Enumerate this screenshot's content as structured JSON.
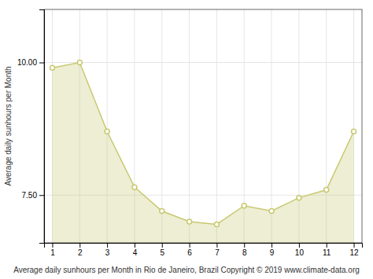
{
  "chart_data": {
    "type": "area",
    "xlabel": "Average daily sunhours per Month in Rio de Janeiro, Brazil Copyright © 2019 www.climate-data.org",
    "ylabel": "Average daily sunhours per Month",
    "x": [
      1,
      2,
      3,
      4,
      5,
      6,
      7,
      8,
      9,
      10,
      11,
      12
    ],
    "values": [
      9.9,
      10.0,
      8.7,
      7.65,
      7.2,
      7.0,
      6.95,
      7.3,
      7.2,
      7.45,
      7.6,
      8.7
    ],
    "color": "#C8C870",
    "marker": "circle",
    "xlim": [
      0.7,
      12.3
    ],
    "ylim": [
      6.6,
      11.0
    ],
    "xticks": [
      1,
      2,
      3,
      4,
      5,
      6,
      7,
      8,
      9,
      10,
      11,
      12
    ],
    "yticks": [
      {
        "value": 7.5,
        "label": "7.50"
      },
      {
        "value": 10.0,
        "label": "10.00"
      }
    ],
    "grid": true
  }
}
